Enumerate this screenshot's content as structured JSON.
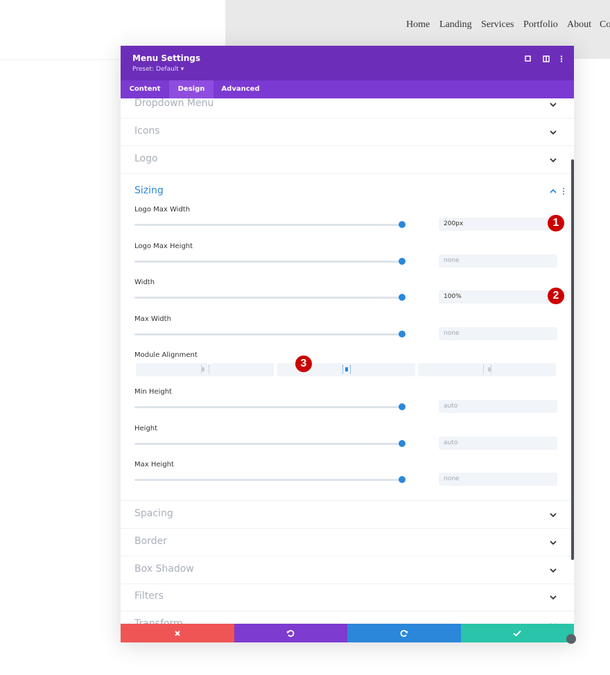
{
  "nav": [
    "Home",
    "Landing",
    "Services",
    "Portfolio",
    "About",
    "Co"
  ],
  "modal": {
    "title": "Menu Settings",
    "preset": "Preset: Default",
    "tabs": [
      "Content",
      "Design",
      "Advanced"
    ],
    "active_tab": 1,
    "sections_above": [
      "Dropdown Menu",
      "Icons",
      "Logo"
    ],
    "open_section": {
      "title": "Sizing",
      "fields": [
        {
          "label": "Logo Max Width",
          "value": "200px",
          "placeholder": false
        },
        {
          "label": "Logo Max Height",
          "value": "none",
          "placeholder": true
        },
        {
          "label": "Width",
          "value": "100%",
          "placeholder": false
        },
        {
          "label": "Max Width",
          "value": "none",
          "placeholder": true
        },
        {
          "label": "Module Alignment"
        },
        {
          "label": "Min Height",
          "value": "auto",
          "placeholder": true
        },
        {
          "label": "Height",
          "value": "auto",
          "placeholder": true
        },
        {
          "label": "Max Height",
          "value": "none",
          "placeholder": true
        }
      ]
    },
    "sections_below": [
      "Spacing",
      "Border",
      "Box Shadow",
      "Filters",
      "Transform"
    ]
  },
  "callouts": [
    "1",
    "2",
    "3"
  ]
}
